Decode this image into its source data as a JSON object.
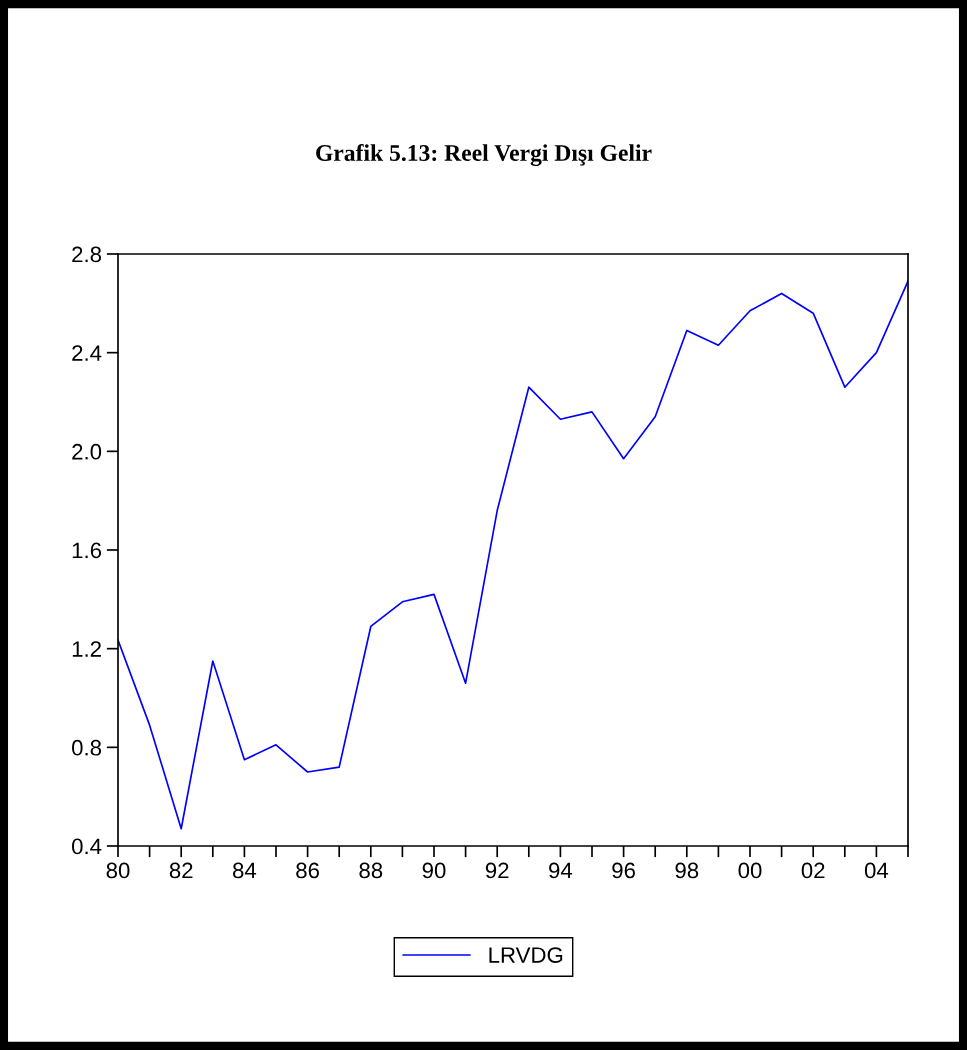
{
  "chart_data": {
    "type": "line",
    "title": "Grafik 5.13: Reel Vergi Dışı Gelir",
    "x": [
      1980,
      1981,
      1982,
      1983,
      1984,
      1985,
      1986,
      1987,
      1988,
      1989,
      1990,
      1991,
      1992,
      1993,
      1994,
      1995,
      1996,
      1997,
      1998,
      1999,
      2000,
      2001,
      2002,
      2003,
      2004,
      2005
    ],
    "series": [
      {
        "name": "LRVDG",
        "color": "#0000ff",
        "values": [
          1.235,
          0.89,
          0.47,
          1.15,
          0.75,
          0.81,
          0.7,
          0.72,
          1.29,
          1.39,
          1.42,
          1.06,
          1.76,
          2.26,
          2.13,
          2.16,
          1.97,
          2.14,
          2.49,
          2.43,
          2.57,
          2.64,
          2.56,
          2.26,
          2.4,
          2.69
        ]
      }
    ],
    "xlim": [
      1980,
      2005
    ],
    "xticks": [
      {
        "value": 1980,
        "label": "80"
      },
      {
        "value": 1981,
        "label": null
      },
      {
        "value": 1982,
        "label": "82"
      },
      {
        "value": 1983,
        "label": null
      },
      {
        "value": 1984,
        "label": "84"
      },
      {
        "value": 1985,
        "label": null
      },
      {
        "value": 1986,
        "label": "86"
      },
      {
        "value": 1987,
        "label": null
      },
      {
        "value": 1988,
        "label": "88"
      },
      {
        "value": 1989,
        "label": null
      },
      {
        "value": 1990,
        "label": "90"
      },
      {
        "value": 1991,
        "label": null
      },
      {
        "value": 1992,
        "label": "92"
      },
      {
        "value": 1993,
        "label": null
      },
      {
        "value": 1994,
        "label": "94"
      },
      {
        "value": 1995,
        "label": null
      },
      {
        "value": 1996,
        "label": "96"
      },
      {
        "value": 1997,
        "label": null
      },
      {
        "value": 1998,
        "label": "98"
      },
      {
        "value": 1999,
        "label": null
      },
      {
        "value": 2000,
        "label": "00"
      },
      {
        "value": 2001,
        "label": null
      },
      {
        "value": 2002,
        "label": "02"
      },
      {
        "value": 2003,
        "label": null
      },
      {
        "value": 2004,
        "label": "04"
      },
      {
        "value": 2005,
        "label": null
      }
    ],
    "ylim": [
      0.4,
      2.8
    ],
    "yticks": [
      {
        "value": 0.4,
        "label": "0.4"
      },
      {
        "value": 0.8,
        "label": "0.8"
      },
      {
        "value": 1.2,
        "label": "1.2"
      },
      {
        "value": 1.6,
        "label": "1.6"
      },
      {
        "value": 2.0,
        "label": "2.0"
      },
      {
        "value": 2.4,
        "label": "2.4"
      },
      {
        "value": 2.8,
        "label": "2.8"
      }
    ],
    "grid": false,
    "legend": "bottom",
    "marker": "none",
    "line_style": "solid"
  }
}
